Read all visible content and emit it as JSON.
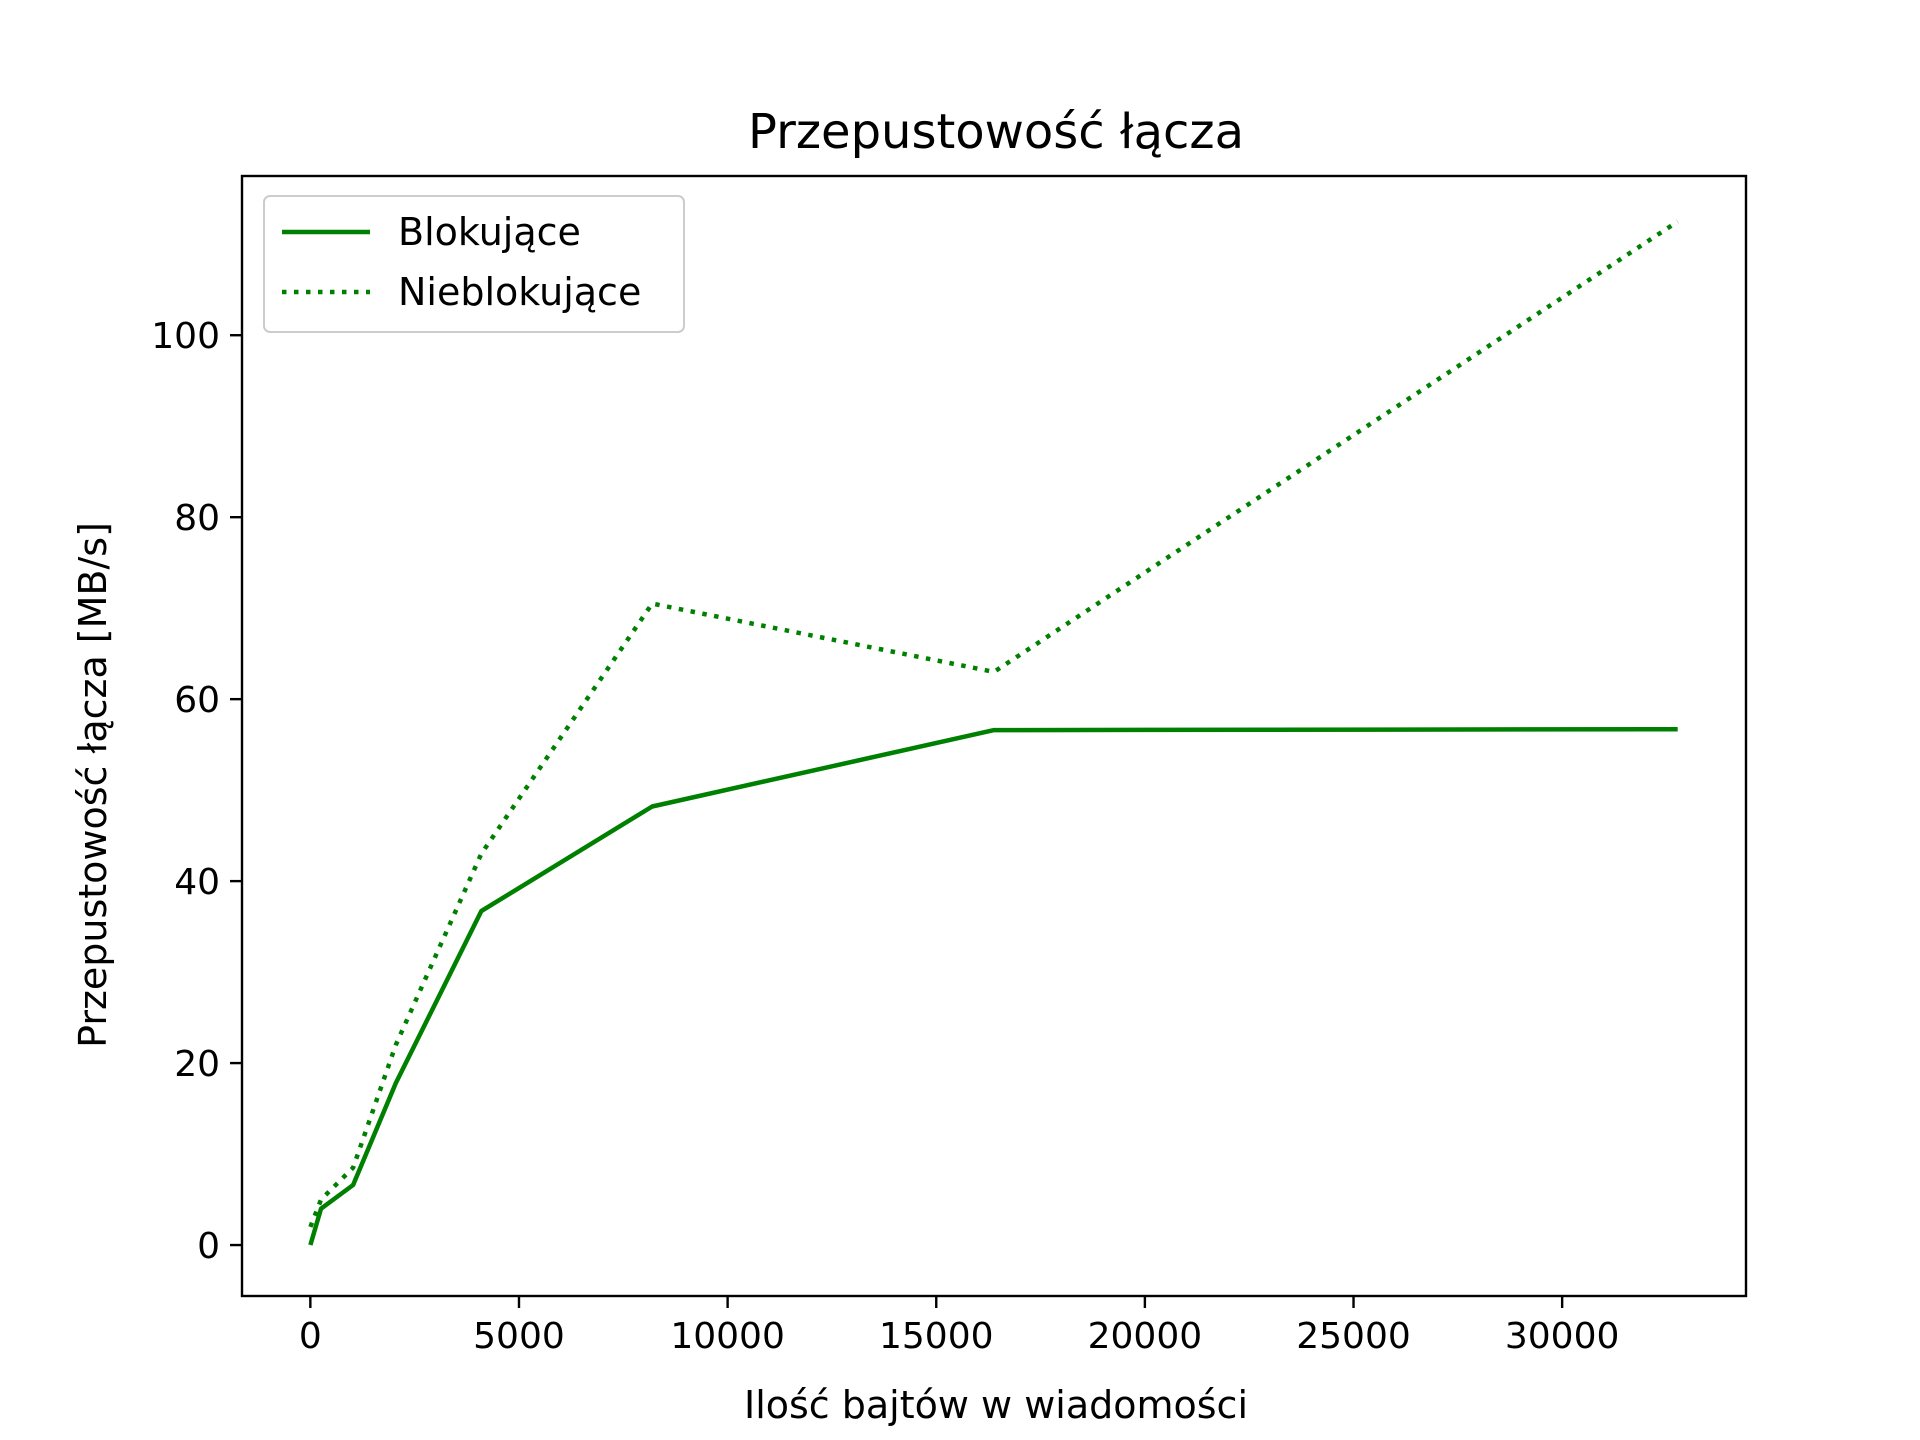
{
  "chart_data": {
    "type": "line",
    "title": "Przepustowość łącza",
    "xlabel": "Ilość bajtów w wiadomości",
    "ylabel": "Przepustowość łącza [MB/s]",
    "xlim": [
      -1638,
      34406
    ],
    "ylim": [
      -5.6,
      117.5
    ],
    "xticks": [
      0,
      5000,
      10000,
      15000,
      20000,
      25000,
      30000
    ],
    "yticks": [
      0,
      20,
      40,
      60,
      80,
      100
    ],
    "xtick_labels": [
      "0",
      "5000",
      "10000",
      "15000",
      "20000",
      "25000",
      "30000"
    ],
    "ytick_labels": [
      "0",
      "20",
      "40",
      "60",
      "80",
      "100"
    ],
    "grid": false,
    "legend_position": "top-left",
    "series": [
      {
        "name": "Blokujące",
        "color": "#008000",
        "style": "solid",
        "x": [
          1,
          256,
          1024,
          2048,
          4096,
          8192,
          16384,
          32768
        ],
        "y": [
          0.0,
          4.0,
          6.6,
          17.8,
          36.7,
          48.2,
          56.6,
          56.7
        ]
      },
      {
        "name": "Nieblokujące",
        "color": "#008000",
        "style": "dotted",
        "x": [
          1,
          256,
          1024,
          2048,
          4096,
          8192,
          16384,
          32768
        ],
        "y": [
          2.0,
          5.0,
          8.5,
          22.0,
          43.0,
          70.5,
          63.0,
          112.5
        ]
      }
    ]
  }
}
